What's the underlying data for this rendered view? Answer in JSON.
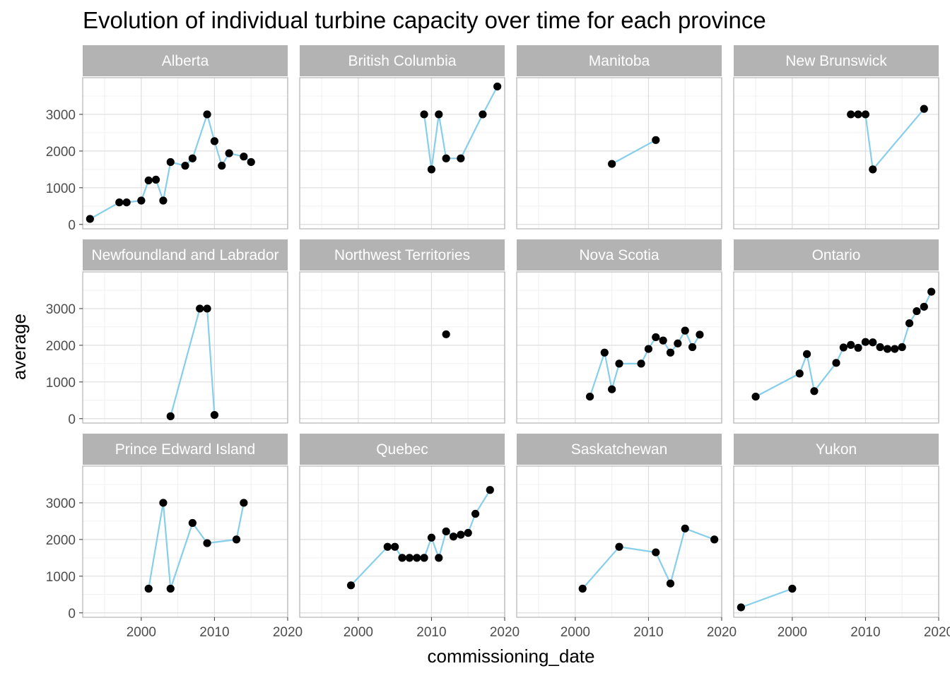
{
  "chart_data": {
    "type": "line",
    "title": "Evolution of individual turbine capacity over time for each province",
    "xlabel": "commissioning_date",
    "ylabel": "average",
    "xlim": [
      1992,
      2020
    ],
    "ylim": [
      -120,
      4000
    ],
    "x_ticks": [
      2000,
      2010,
      2020
    ],
    "y_ticks": [
      0,
      1000,
      2000,
      3000
    ],
    "x_tick_labels": [
      "2000",
      "2010",
      "2020"
    ],
    "y_tick_labels": [
      "0",
      "1000",
      "2000",
      "3000"
    ],
    "grid": true,
    "line_color": "#87ceeb",
    "point_color": "#000000",
    "strip_color": "#b3b3b3",
    "panels": [
      {
        "name": "Alberta",
        "points": [
          [
            1993,
            150
          ],
          [
            1997,
            600
          ],
          [
            1998,
            600
          ],
          [
            2000,
            650
          ],
          [
            2001,
            1200
          ],
          [
            2002,
            1220
          ],
          [
            2003,
            650
          ],
          [
            2004,
            1700
          ],
          [
            2006,
            1600
          ],
          [
            2007,
            1800
          ],
          [
            2009,
            3000
          ],
          [
            2010,
            2270
          ],
          [
            2011,
            1600
          ],
          [
            2012,
            1940
          ],
          [
            2014,
            1850
          ],
          [
            2015,
            1700
          ]
        ]
      },
      {
        "name": "British Columbia",
        "points": [
          [
            2009,
            3000
          ],
          [
            2010,
            1500
          ],
          [
            2011,
            3000
          ],
          [
            2012,
            1800
          ],
          [
            2014,
            1800
          ],
          [
            2017,
            3000
          ],
          [
            2019,
            3760
          ]
        ]
      },
      {
        "name": "Manitoba",
        "points": [
          [
            2005,
            1650
          ],
          [
            2011,
            2300
          ]
        ]
      },
      {
        "name": "New Brunswick",
        "points": [
          [
            2008,
            3000
          ],
          [
            2009,
            3000
          ],
          [
            2010,
            3000
          ],
          [
            2011,
            1500
          ],
          [
            2018,
            3150
          ]
        ]
      },
      {
        "name": "Newfoundland and Labrador",
        "points": [
          [
            2004,
            65
          ],
          [
            2008,
            3000
          ],
          [
            2009,
            3000
          ],
          [
            2010,
            100
          ]
        ]
      },
      {
        "name": "Northwest Territories",
        "points": [
          [
            2012,
            2300
          ]
        ]
      },
      {
        "name": "Nova Scotia",
        "points": [
          [
            2002,
            600
          ],
          [
            2004,
            1800
          ],
          [
            2005,
            800
          ],
          [
            2006,
            1500
          ],
          [
            2009,
            1500
          ],
          [
            2010,
            1900
          ],
          [
            2011,
            2220
          ],
          [
            2012,
            2130
          ],
          [
            2013,
            1800
          ],
          [
            2014,
            2050
          ],
          [
            2015,
            2400
          ],
          [
            2016,
            1950
          ],
          [
            2017,
            2290
          ]
        ]
      },
      {
        "name": "Ontario",
        "points": [
          [
            1995,
            600
          ],
          [
            2001,
            1230
          ],
          [
            2002,
            1760
          ],
          [
            2003,
            750
          ],
          [
            2006,
            1520
          ],
          [
            2007,
            1940
          ],
          [
            2008,
            2010
          ],
          [
            2009,
            1930
          ],
          [
            2010,
            2090
          ],
          [
            2011,
            2080
          ],
          [
            2012,
            1950
          ],
          [
            2013,
            1900
          ],
          [
            2014,
            1900
          ],
          [
            2015,
            1950
          ],
          [
            2016,
            2600
          ],
          [
            2017,
            2930
          ],
          [
            2018,
            3050
          ],
          [
            2019,
            3460
          ]
        ]
      },
      {
        "name": "Prince Edward Island",
        "points": [
          [
            2001,
            660
          ],
          [
            2003,
            3000
          ],
          [
            2004,
            660
          ],
          [
            2007,
            2450
          ],
          [
            2009,
            1900
          ],
          [
            2013,
            2000
          ],
          [
            2014,
            3000
          ]
        ]
      },
      {
        "name": "Quebec",
        "points": [
          [
            1999,
            750
          ],
          [
            2004,
            1800
          ],
          [
            2005,
            1800
          ],
          [
            2006,
            1500
          ],
          [
            2007,
            1500
          ],
          [
            2008,
            1500
          ],
          [
            2009,
            1500
          ],
          [
            2010,
            2050
          ],
          [
            2011,
            1500
          ],
          [
            2012,
            2220
          ],
          [
            2013,
            2080
          ],
          [
            2014,
            2130
          ],
          [
            2015,
            2180
          ],
          [
            2016,
            2700
          ],
          [
            2018,
            3350
          ]
        ]
      },
      {
        "name": "Saskatchewan",
        "points": [
          [
            2001,
            660
          ],
          [
            2006,
            1800
          ],
          [
            2011,
            1650
          ],
          [
            2013,
            800
          ],
          [
            2015,
            2300
          ],
          [
            2019,
            2000
          ]
        ]
      },
      {
        "name": "Yukon",
        "points": [
          [
            1993,
            150
          ],
          [
            2000,
            660
          ]
        ]
      }
    ]
  }
}
